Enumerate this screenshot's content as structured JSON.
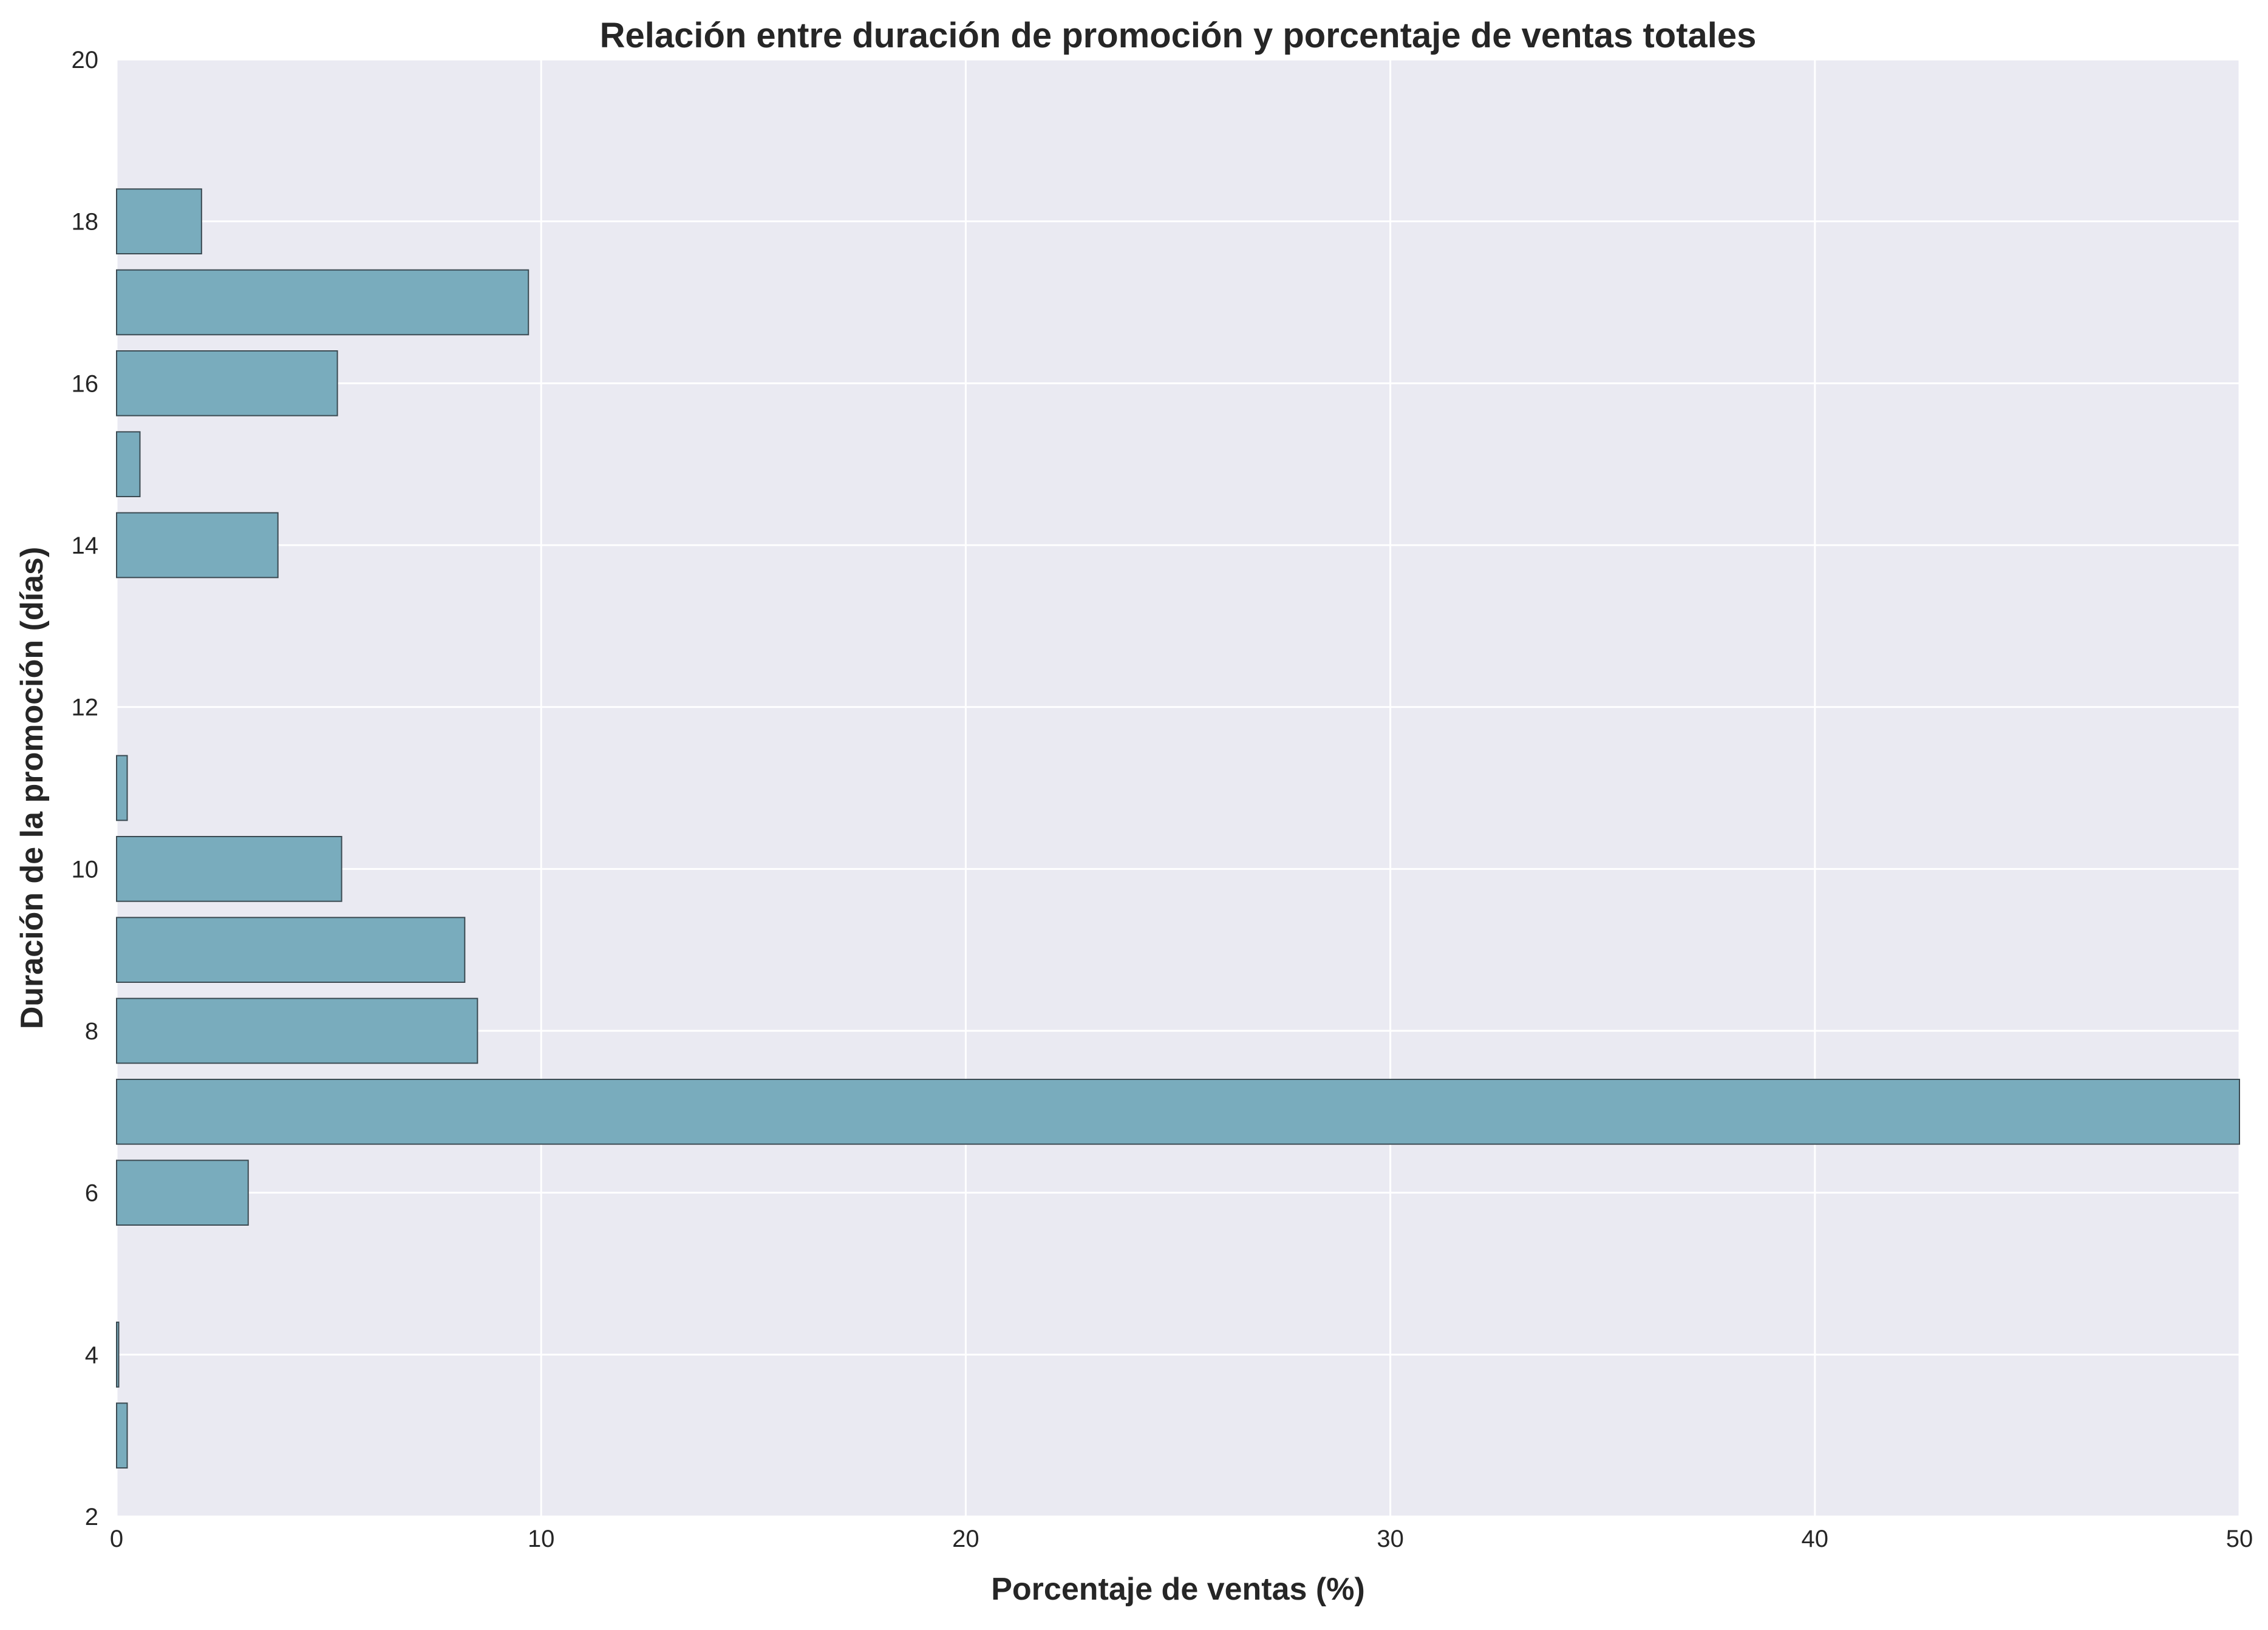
{
  "chart_data": {
    "type": "bar",
    "orientation": "horizontal",
    "title": "Relación entre duración de promoción y porcentaje de ventas totales",
    "xlabel": "Porcentaje de ventas (%)",
    "ylabel": "Duración de la promoción (días)",
    "xlim": [
      0,
      50
    ],
    "ylim": [
      2,
      20
    ],
    "xticks": [
      0,
      10,
      20,
      30,
      40,
      50
    ],
    "yticks": [
      2,
      4,
      6,
      8,
      10,
      12,
      14,
      16,
      18,
      20
    ],
    "grid": true,
    "bars": [
      {
        "y": 3,
        "value": 0.25
      },
      {
        "y": 4,
        "value": 0.05
      },
      {
        "y": 6,
        "value": 3.1
      },
      {
        "y": 7,
        "value": 50.0
      },
      {
        "y": 8,
        "value": 8.5
      },
      {
        "y": 9,
        "value": 8.2
      },
      {
        "y": 10,
        "value": 5.3
      },
      {
        "y": 11,
        "value": 0.25
      },
      {
        "y": 14,
        "value": 3.8
      },
      {
        "y": 15,
        "value": 0.55
      },
      {
        "y": 16,
        "value": 5.2
      },
      {
        "y": 17,
        "value": 9.7
      },
      {
        "y": 18,
        "value": 2.0
      }
    ],
    "colors": {
      "bar_fill": "#79acbd",
      "bar_edge": "#3b4a52",
      "plot_background": "#eaeaf2",
      "grid": "#ffffff",
      "text": "#262626"
    }
  }
}
